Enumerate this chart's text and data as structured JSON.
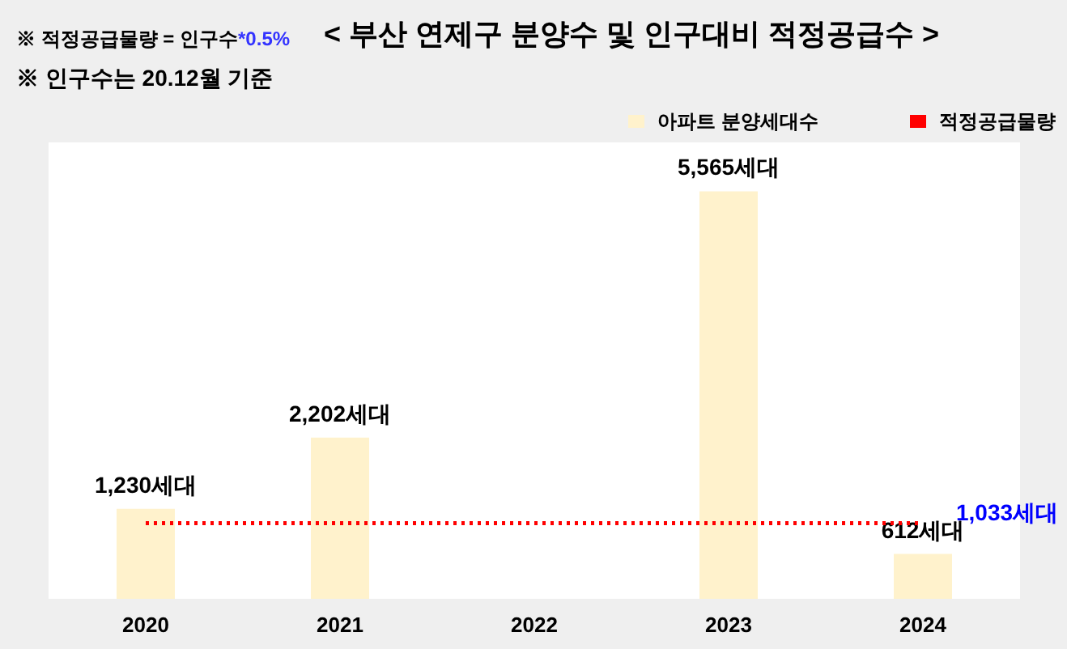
{
  "chart_data": {
    "type": "bar",
    "title": "< 부산 연제구 분양수 및 인구대비 적정공급수 >",
    "annotations": [
      "※ 적정공급물량 = 인구수*0.5%",
      "※ 인구수는 20.12월 기준"
    ],
    "categories": [
      "2020",
      "2021",
      "2022",
      "2023",
      "2024"
    ],
    "series": [
      {
        "name": "아파트 분양세대수",
        "color": "#fff2cc",
        "values": [
          1230,
          2202,
          null,
          5565,
          612
        ],
        "value_labels": [
          "1,230세대",
          "2,202세대",
          null,
          "5,565세대",
          "612세대"
        ]
      },
      {
        "name": "적정공급물량",
        "type": "line",
        "color": "#ff0000",
        "line_style": "dotted",
        "values": [
          1033,
          1033,
          1033,
          1033,
          1033
        ],
        "value_labels": [
          null,
          null,
          null,
          null,
          "1,033세대"
        ]
      }
    ],
    "legend": "top right",
    "grid": false
  }
}
